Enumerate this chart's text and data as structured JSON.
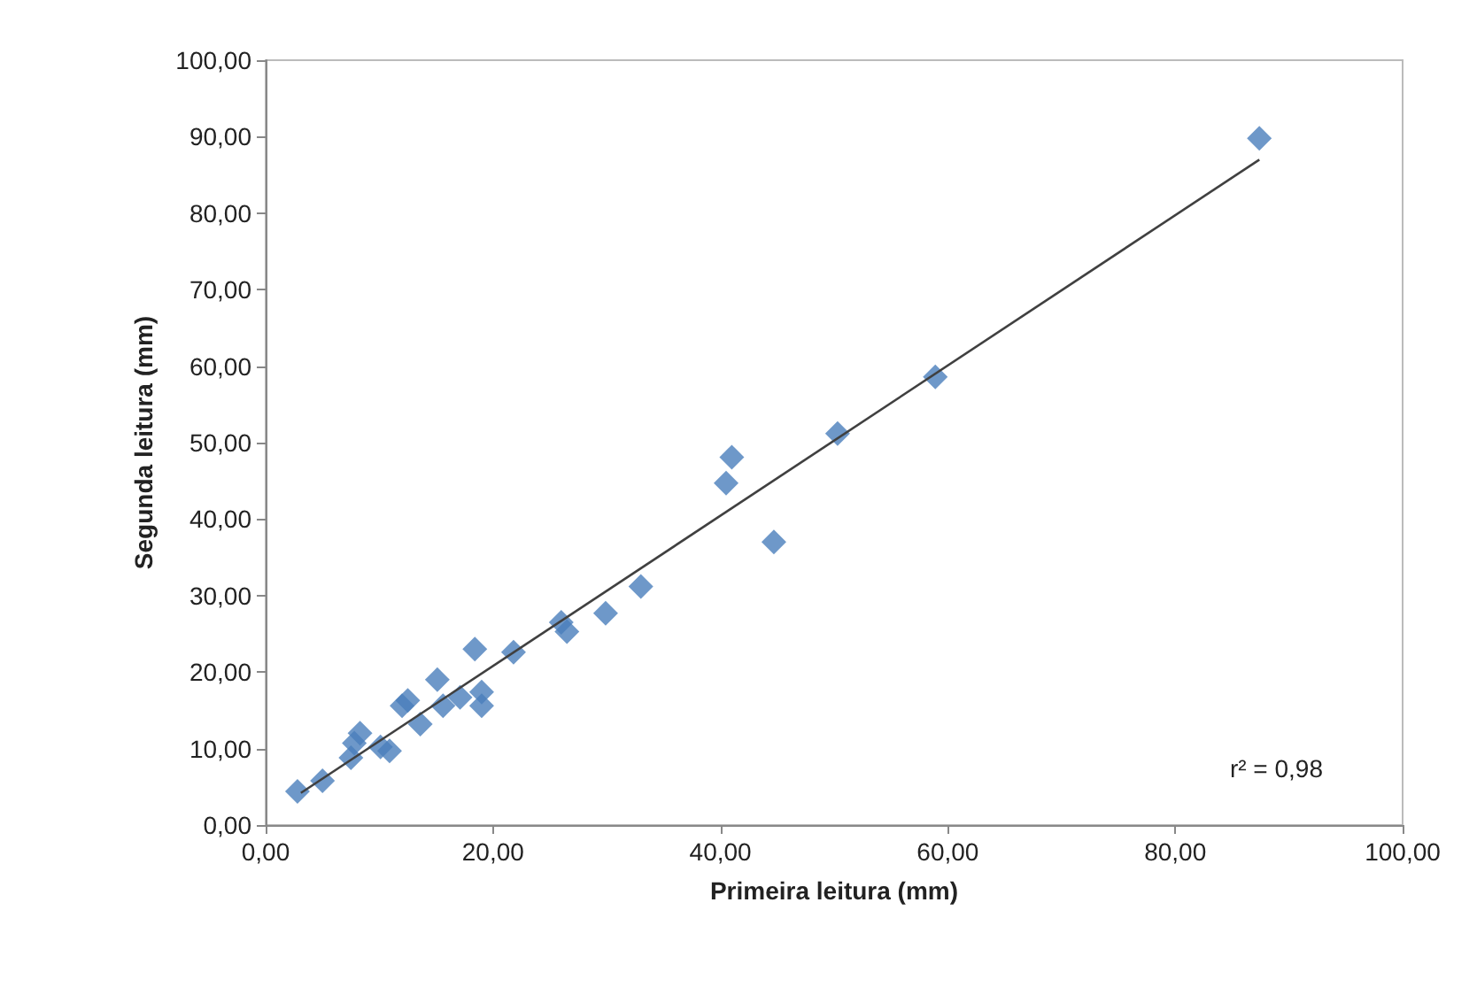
{
  "chart_data": {
    "type": "scatter",
    "xlabel": "Primeira leitura (mm)",
    "ylabel": "Segunda leitura (mm)",
    "marker": "diamond",
    "grid": false,
    "annotations": [
      "r² = 0,98"
    ],
    "xlim": [
      0,
      100
    ],
    "ylim": [
      0,
      100
    ],
    "xticks": [
      {
        "value": 0,
        "label": "0,00"
      },
      {
        "value": 20,
        "label": "20,00"
      },
      {
        "value": 40,
        "label": "40,00"
      },
      {
        "value": 60,
        "label": "60,00"
      },
      {
        "value": 80,
        "label": "80,00"
      },
      {
        "value": 100,
        "label": "100,00"
      }
    ],
    "yticks": [
      {
        "value": 0,
        "label": "0,00"
      },
      {
        "value": 10,
        "label": "10,00"
      },
      {
        "value": 20,
        "label": "20,00"
      },
      {
        "value": 30,
        "label": "30,00"
      },
      {
        "value": 40,
        "label": "40,00"
      },
      {
        "value": 50,
        "label": "50,00"
      },
      {
        "value": 60,
        "label": "60,00"
      },
      {
        "value": 70,
        "label": "70,00"
      },
      {
        "value": 80,
        "label": "80,00"
      },
      {
        "value": 90,
        "label": "90,00"
      },
      {
        "value": 100,
        "label": "100,00"
      }
    ],
    "series": [
      {
        "color": "#4a7ebb",
        "x": [
          2.8,
          5.0,
          7.8,
          8.3,
          7.5,
          10.1,
          10.9,
          12.0,
          12.5,
          13.6,
          15.1,
          15.6,
          17.1,
          18.4,
          19.0,
          19.0,
          21.8,
          26.0,
          26.5,
          29.9,
          33.0,
          41.0,
          40.5,
          44.7,
          50.3,
          58.9,
          87.4
        ],
        "values": [
          4.4,
          5.8,
          10.7,
          12.0,
          8.8,
          10.2,
          9.7,
          15.6,
          16.3,
          13.2,
          19.0,
          15.6,
          16.7,
          23.0,
          17.4,
          15.6,
          22.6,
          26.5,
          25.3,
          27.7,
          31.2,
          48.1,
          44.7,
          37.0,
          51.2,
          58.6,
          89.8
        ]
      },
      {
        "type": "line",
        "color": "#404040",
        "marker": "none",
        "x": [
          3.1,
          87.4
        ],
        "values": [
          4.2,
          87.0
        ]
      }
    ]
  }
}
